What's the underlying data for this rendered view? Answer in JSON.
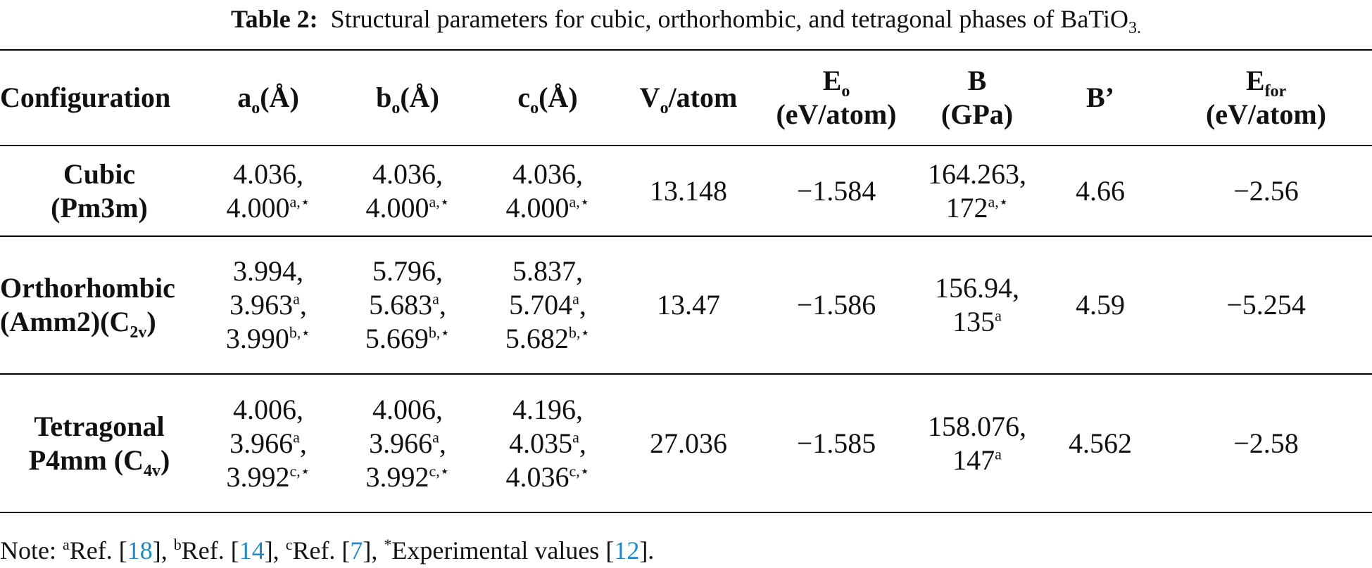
{
  "caption": {
    "label": "Table 2:",
    "text": "Structural parameters for cubic, orthorhombic, and tetragonal phases of BaTiO",
    "sub": "3."
  },
  "header": {
    "configuration": "Configuration",
    "a_main": "a",
    "a_sub": "o",
    "a_unit": "(Å)",
    "b_main": "b",
    "b_sub": "o",
    "b_unit": "(Å)",
    "c_main": "c",
    "c_sub": "o",
    "c_unit": "(Å)",
    "v_main": "V",
    "v_sub": "o",
    "v_rest": "/atom",
    "e_main": "E",
    "e_sub": "o",
    "e_unit": "(eV/atom)",
    "b_bulk": "B",
    "b_bulk_unit": "(GPa)",
    "b_prime": "B’",
    "efor_main": "E",
    "efor_sub": "for",
    "efor_unit": "(eV/atom)"
  },
  "rows": [
    {
      "config_line1": "Cubic",
      "config_line2": "(Pm3m)",
      "a_l1": "4.036,",
      "a_l2": "4.000",
      "a_l2_sup": "a,⋆",
      "b_l1": "4.036,",
      "b_l2": "4.000",
      "b_l2_sup": "a,⋆",
      "c_l1": "4.036,",
      "c_l2": "4.000",
      "c_l2_sup": "a,⋆",
      "v": "13.148",
      "e": "−1.584",
      "bulk_l1": "164.263,",
      "bulk_l2": "172",
      "bulk_l2_sup": "a,⋆",
      "bprime": "4.66",
      "efor": "−2.56"
    },
    {
      "config_line1": "Orthorhombic",
      "config_line2": "(Amm2)(C",
      "config_line2_sub": "2v",
      "config_line2_end": ")",
      "a_l1": "3.994,",
      "a_l2": "3.963",
      "a_l2_sup": "a",
      "a_l2_end": ",",
      "a_l3": "3.990",
      "a_l3_sup": "b,⋆",
      "b_l1": "5.796,",
      "b_l2": "5.683",
      "b_l2_sup": "a",
      "b_l2_end": ",",
      "b_l3": "5.669",
      "b_l3_sup": "b,⋆",
      "c_l1": "5.837,",
      "c_l2": "5.704",
      "c_l2_sup": "a",
      "c_l2_end": ",",
      "c_l3": "5.682",
      "c_l3_sup": "b,⋆",
      "v": "13.47",
      "e": "−1.586",
      "bulk_l1": "156.94,",
      "bulk_l2": "135",
      "bulk_l2_sup": "a",
      "bprime": "4.59",
      "efor": "−5.254"
    },
    {
      "config_line1": "Tetragonal",
      "config_line2": "P4mm (C",
      "config_line2_sub": "4v",
      "config_line2_end": ")",
      "a_l1": "4.006,",
      "a_l2": "3.966",
      "a_l2_sup": "a",
      "a_l2_end": ",",
      "a_l3": "3.992",
      "a_l3_sup": "c,⋆",
      "b_l1": "4.006,",
      "b_l2": "3.966",
      "b_l2_sup": "a",
      "b_l2_end": ",",
      "b_l3": "3.992",
      "b_l3_sup": "c,⋆",
      "c_l1": "4.196,",
      "c_l2": "4.035",
      "c_l2_sup": "a",
      "c_l2_end": ",",
      "c_l3": "4.036",
      "c_l3_sup": "c,⋆",
      "v": "27.036",
      "e": "−1.585",
      "bulk_l1": "158.076,",
      "bulk_l2": "147",
      "bulk_l2_sup": "a",
      "bprime": "4.562",
      "efor": "−2.58"
    }
  ],
  "note": {
    "prefix": "Note: ",
    "a_mark": "a",
    "a_text": "Ref. [",
    "a_ref": "18",
    "a_close": "], ",
    "b_mark": "b",
    "b_text": "Ref. [",
    "b_ref": "14",
    "b_close": "], ",
    "c_mark": "c",
    "c_text": "Ref. [",
    "c_ref": "7",
    "c_close": "], ",
    "star_mark": "*",
    "star_text": "Experimental values [",
    "star_ref": "12",
    "star_close": "]."
  },
  "colors": {
    "link": "#1e88c9",
    "text": "#111111",
    "rule": "#000000"
  }
}
